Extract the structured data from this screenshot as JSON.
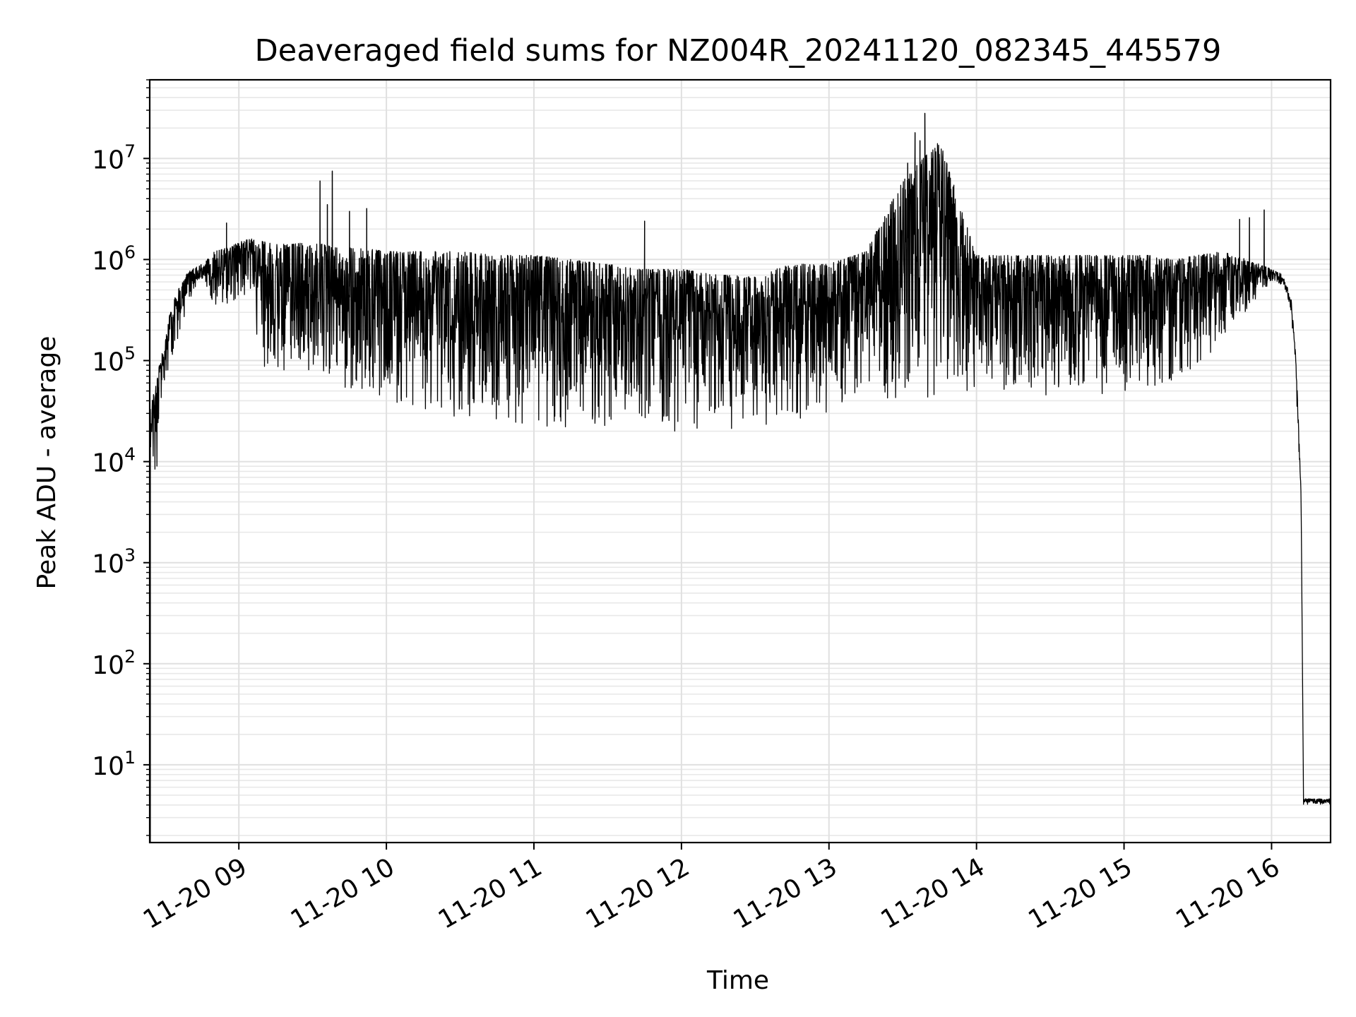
{
  "chart_data": {
    "type": "line",
    "title": "Deaveraged field sums for NZ004R_20241120_082345_445579",
    "xlabel": "Time",
    "ylabel": "Peak ADU - average",
    "yscale": "log",
    "ylim": [
      1.7,
      60000000
    ],
    "xlim": [
      "2024-11-20 08:23:45",
      "2024-11-20 16:24:00"
    ],
    "grid": "major and minor, light gray",
    "line_color": "#000000",
    "x_ticks": [
      {
        "time": "2024-11-20 09:00",
        "label": "11-20 09"
      },
      {
        "time": "2024-11-20 10:00",
        "label": "11-20 10"
      },
      {
        "time": "2024-11-20 11:00",
        "label": "11-20 11"
      },
      {
        "time": "2024-11-20 12:00",
        "label": "11-20 12"
      },
      {
        "time": "2024-11-20 13:00",
        "label": "11-20 13"
      },
      {
        "time": "2024-11-20 14:00",
        "label": "11-20 14"
      },
      {
        "time": "2024-11-20 15:00",
        "label": "11-20 15"
      },
      {
        "time": "2024-11-20 16:00",
        "label": "11-20 16"
      }
    ],
    "y_ticks": [
      {
        "value": 10,
        "base": "10",
        "exp": "1"
      },
      {
        "value": 100,
        "base": "10",
        "exp": "2"
      },
      {
        "value": 1000,
        "base": "10",
        "exp": "3"
      },
      {
        "value": 10000,
        "base": "10",
        "exp": "4"
      },
      {
        "value": 100000,
        "base": "10",
        "exp": "5"
      },
      {
        "value": 1000000,
        "base": "10",
        "exp": "6"
      },
      {
        "value": 10000000,
        "base": "10",
        "exp": "7"
      }
    ],
    "series": [
      {
        "envelope": {
          "x": [
            "2024-11-20 08:24",
            "2024-11-20 08:26",
            "2024-11-20 08:28",
            "2024-11-20 08:30",
            "2024-11-20 08:32",
            "2024-11-20 08:35",
            "2024-11-20 08:40",
            "2024-11-20 08:45",
            "2024-11-20 08:50",
            "2024-11-20 08:55",
            "2024-11-20 09:00",
            "2024-11-20 09:05",
            "2024-11-20 09:10",
            "2024-11-20 09:20",
            "2024-11-20 09:30",
            "2024-11-20 09:40",
            "2024-11-20 09:50",
            "2024-11-20 10:00",
            "2024-11-20 10:15",
            "2024-11-20 10:30",
            "2024-11-20 10:45",
            "2024-11-20 11:00",
            "2024-11-20 11:15",
            "2024-11-20 11:30",
            "2024-11-20 11:45",
            "2024-11-20 12:00",
            "2024-11-20 12:15",
            "2024-11-20 12:30",
            "2024-11-20 12:45",
            "2024-11-20 13:00",
            "2024-11-20 13:15",
            "2024-11-20 13:30",
            "2024-11-20 13:45",
            "2024-11-20 14:00",
            "2024-11-20 14:15",
            "2024-11-20 14:30",
            "2024-11-20 14:45",
            "2024-11-20 15:00",
            "2024-11-20 15:10",
            "2024-11-20 15:20",
            "2024-11-20 15:30",
            "2024-11-20 15:40",
            "2024-11-20 15:50",
            "2024-11-20 15:55",
            "2024-11-20 16:00",
            "2024-11-20 16:05",
            "2024-11-20 16:08",
            "2024-11-20 16:10",
            "2024-11-20 16:12",
            "2024-11-20 16:13",
            "2024-11-20 16:24"
          ],
          "low": [
            15000,
            4000,
            30000,
            60000,
            100000,
            150000,
            400000,
            600000,
            350000,
            300000,
            400000,
            400000,
            70000,
            70000,
            70000,
            50000,
            40000,
            35000,
            30000,
            25000,
            22000,
            22000,
            22000,
            22000,
            20000,
            20000,
            20000,
            22000,
            25000,
            30000,
            35000,
            40000,
            45000,
            45000,
            45000,
            45000,
            45000,
            48000,
            50000,
            60000,
            80000,
            150000,
            300000,
            450000,
            600000,
            550000,
            300000,
            50000,
            4000,
            4,
            4
          ],
          "high": [
            35000,
            55000,
            100000,
            150000,
            300000,
            500000,
            800000,
            900000,
            1200000,
            1300000,
            1500000,
            1600000,
            1500000,
            1400000,
            1500000,
            1300000,
            1300000,
            1200000,
            1200000,
            1200000,
            1100000,
            1100000,
            1000000,
            900000,
            800000,
            800000,
            700000,
            700000,
            900000,
            900000,
            1200000,
            6000000,
            15000000,
            1100000,
            1100000,
            1100000,
            1100000,
            1100000,
            1100000,
            1000000,
            1100000,
            1200000,
            1000000,
            900000,
            800000,
            700000,
            400000,
            100000,
            5000,
            4.6,
            4.6
          ]
        },
        "spikes": [
          {
            "x": "2024-11-20 08:55",
            "y": 2300000
          },
          {
            "x": "2024-11-20 09:33",
            "y": 6000000
          },
          {
            "x": "2024-11-20 09:36",
            "y": 3500000
          },
          {
            "x": "2024-11-20 09:38",
            "y": 7500000
          },
          {
            "x": "2024-11-20 09:45",
            "y": 3000000
          },
          {
            "x": "2024-11-20 09:52",
            "y": 3200000
          },
          {
            "x": "2024-11-20 11:45",
            "y": 2400000
          },
          {
            "x": "2024-11-20 13:27",
            "y": 2700000
          },
          {
            "x": "2024-11-20 13:32",
            "y": 9000000
          },
          {
            "x": "2024-11-20 13:35",
            "y": 18000000
          },
          {
            "x": "2024-11-20 13:37",
            "y": 15000000
          },
          {
            "x": "2024-11-20 13:39",
            "y": 28000000
          },
          {
            "x": "2024-11-20 13:42",
            "y": 10000000
          },
          {
            "x": "2024-11-20 15:47",
            "y": 2500000
          },
          {
            "x": "2024-11-20 15:51",
            "y": 2600000
          },
          {
            "x": "2024-11-20 15:57",
            "y": 3100000
          }
        ]
      }
    ]
  }
}
